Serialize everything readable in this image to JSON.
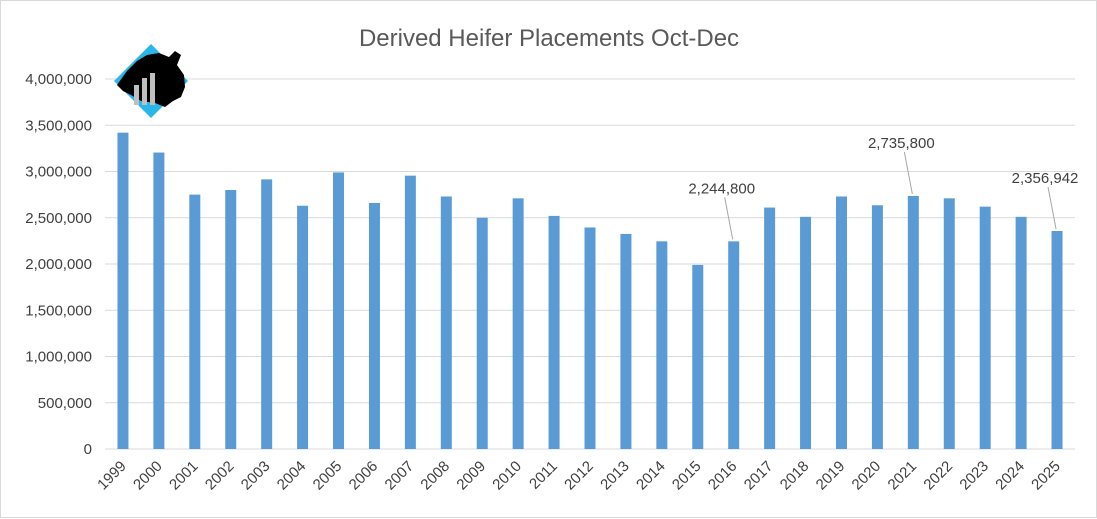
{
  "chart_data": {
    "type": "bar",
    "title": "Derived Heifer Placements Oct-Dec",
    "categories": [
      "1999",
      "2000",
      "2001",
      "2002",
      "2003",
      "2004",
      "2005",
      "2006",
      "2007",
      "2008",
      "2009",
      "2010",
      "2011",
      "2012",
      "2013",
      "2014",
      "2015",
      "2016",
      "2017",
      "2018",
      "2019",
      "2020",
      "2021",
      "2022",
      "2023",
      "2024",
      "2025"
    ],
    "values": [
      3420000,
      3205000,
      2750000,
      2800000,
      2915000,
      2630000,
      2990000,
      2660000,
      2955000,
      2730000,
      2500000,
      2710000,
      2520000,
      2395000,
      2325000,
      2245000,
      1990000,
      2244800,
      2610000,
      2510000,
      2730000,
      2635000,
      2735800,
      2710000,
      2620000,
      2510000,
      2356942
    ],
    "y_ticks": [
      "0",
      "500,000",
      "1,000,000",
      "1,500,000",
      "2,000,000",
      "2,500,000",
      "3,000,000",
      "3,500,000",
      "4,000,000"
    ],
    "ylim": [
      0,
      4000000
    ],
    "grid": true,
    "bar_color": "#5b9bd5",
    "data_labels": [
      {
        "category": "2016",
        "text": "2,244,800"
      },
      {
        "category": "2021",
        "text": "2,735,800"
      },
      {
        "category": "2025",
        "text": "2,356,942"
      }
    ]
  },
  "logo": {
    "icon": "cow-bar-chart-logo",
    "colors": [
      "#29b6e8",
      "#000000",
      "#bfbfbf"
    ]
  }
}
